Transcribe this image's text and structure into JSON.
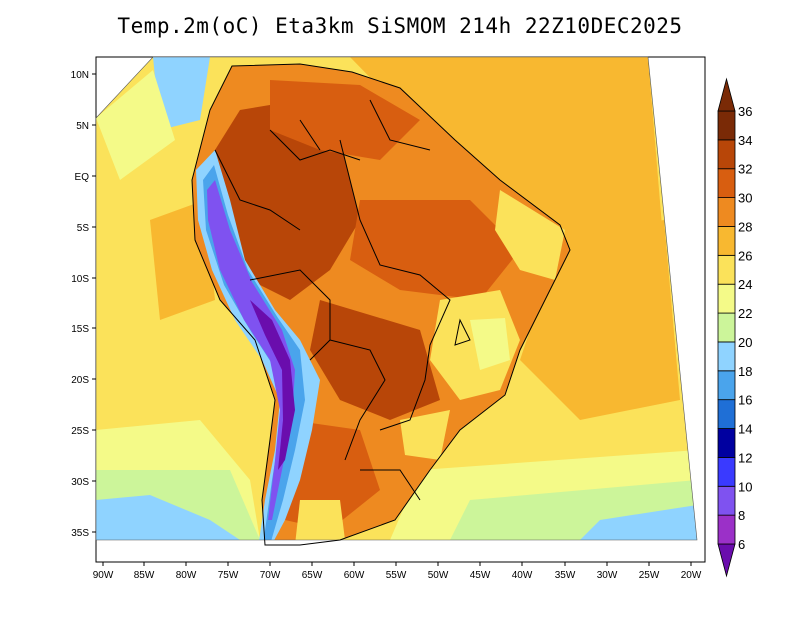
{
  "title": "Temp.2m(oC) Eta3km SiSMOM 214h 22Z10DEC2025",
  "map": {
    "region": "South America",
    "variable": "2 m temperature",
    "units": "oC",
    "lon_labels": [
      "90W",
      "85W",
      "80W",
      "75W",
      "70W",
      "65W",
      "60W",
      "55W",
      "50W",
      "45W",
      "40W",
      "35W",
      "30W",
      "25W",
      "20W"
    ],
    "lat_labels": [
      "10N",
      "5N",
      "EQ",
      "5S",
      "10S",
      "15S",
      "20S",
      "25S",
      "30S",
      "35S"
    ]
  },
  "colorbar": {
    "levels": [
      "6",
      "8",
      "10",
      "12",
      "14",
      "16",
      "18",
      "20",
      "22",
      "24",
      "26",
      "28",
      "30",
      "32",
      "34",
      "36"
    ],
    "colors": [
      "#6a0dad",
      "#9b30c8",
      "#7f52f0",
      "#3a3aff",
      "#0000a0",
      "#1f6fd6",
      "#4aa4ec",
      "#8fd3ff",
      "#ccf59a",
      "#f4fa88",
      "#fbe25a",
      "#f8b830",
      "#ee8a20",
      "#d85e10",
      "#b84608",
      "#7a2a06"
    ]
  }
}
